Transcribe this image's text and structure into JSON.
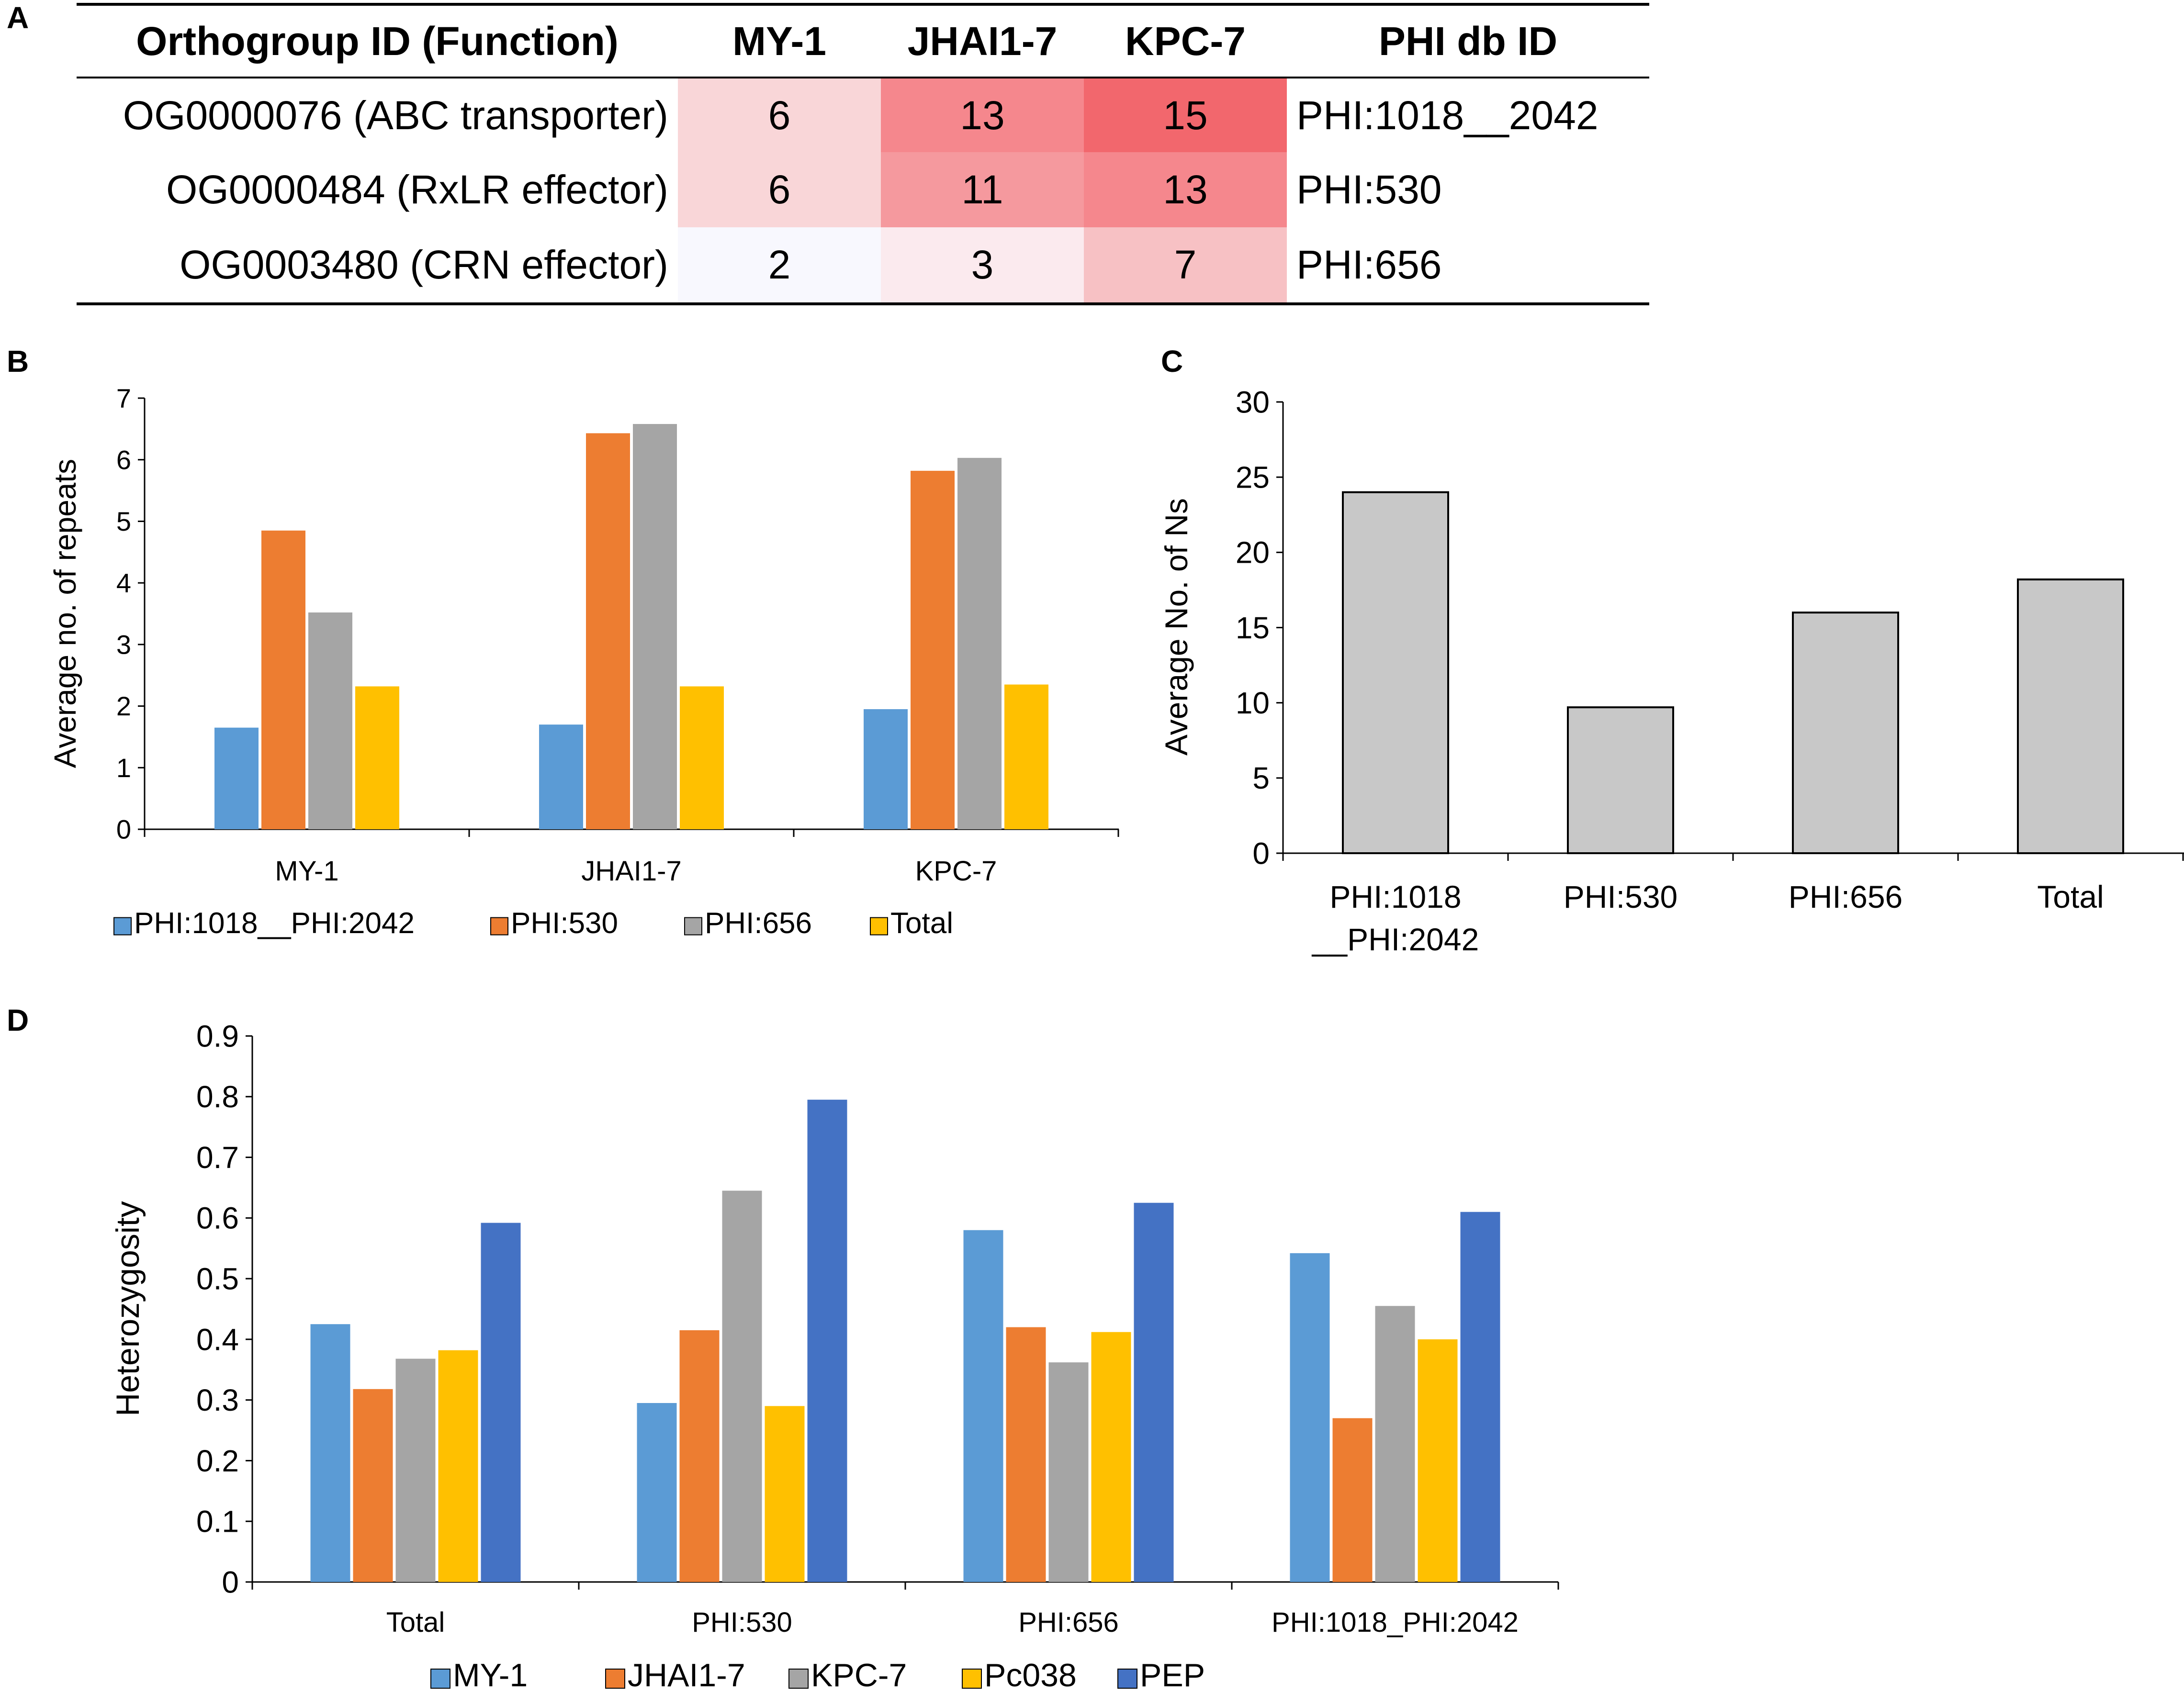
{
  "panels": {
    "a": "A",
    "b": "B",
    "c": "C",
    "d": "D"
  },
  "table": {
    "headers": [
      "Orthogroup ID (Function)",
      "MY-1",
      "JHAI1-7",
      "KPC-7",
      "PHI db ID"
    ],
    "rows": [
      {
        "orthogroup": "OG0000076 (ABC transporter)",
        "counts": [
          "6",
          "13",
          "15"
        ],
        "phi": "PHI:1018__2042"
      },
      {
        "orthogroup": "OG0000484 (RxLR effector)",
        "counts": [
          "6",
          "11",
          "13"
        ],
        "phi": "PHI:530"
      },
      {
        "orthogroup": "OG0003480 (CRN effector)",
        "counts": [
          "2",
          "3",
          "7"
        ],
        "phi": "PHI:656"
      }
    ]
  },
  "chart_data": [
    {
      "id": "B",
      "type": "bar",
      "categories": [
        "MY-1",
        "JHAI1-7",
        "KPC-7"
      ],
      "series": [
        {
          "name": "PHI:1018__PHI:2042",
          "color": "#5b9bd5",
          "values": [
            1.65,
            1.7,
            1.95
          ]
        },
        {
          "name": "PHI:530",
          "color": "#ed7d31",
          "values": [
            4.85,
            6.43,
            5.82
          ]
        },
        {
          "name": "PHI:656",
          "color": "#a5a5a5",
          "values": [
            3.52,
            6.58,
            6.03
          ]
        },
        {
          "name": "Total",
          "color": "#ffc000",
          "values": [
            2.32,
            2.32,
            2.35
          ]
        }
      ],
      "title": "",
      "xlabel": "",
      "ylabel": "Average no. of repeats",
      "ylim": [
        0,
        7
      ],
      "yticks": [
        "0",
        "1",
        "2",
        "3",
        "4",
        "5",
        "6",
        "7"
      ],
      "legend": "bottom"
    },
    {
      "id": "C",
      "type": "bar",
      "categories": [
        "PHI:1018\n__PHI:2042",
        "PHI:530",
        "PHI:656",
        "Total"
      ],
      "series": [
        {
          "name": "Average No. of Ns",
          "color": "#c8c8c8",
          "values": [
            24,
            9.7,
            16,
            18.2
          ]
        }
      ],
      "title": "",
      "xlabel": "",
      "ylabel": "Average No. of Ns",
      "ylim": [
        0,
        30
      ],
      "yticks": [
        "0",
        "5",
        "10",
        "15",
        "20",
        "25",
        "30"
      ],
      "legend": "none"
    },
    {
      "id": "D",
      "type": "bar",
      "categories": [
        "Total",
        "PHI:530",
        "PHI:656",
        "PHI:1018_PHI:2042"
      ],
      "series": [
        {
          "name": "MY-1",
          "color": "#5b9bd5",
          "values": [
            0.425,
            0.295,
            0.58,
            0.542
          ]
        },
        {
          "name": "JHAI1-7",
          "color": "#ed7d31",
          "values": [
            0.318,
            0.415,
            0.42,
            0.27
          ]
        },
        {
          "name": "KPC-7",
          "color": "#a5a5a5",
          "values": [
            0.368,
            0.645,
            0.362,
            0.455
          ]
        },
        {
          "name": "Pc038",
          "color": "#ffc000",
          "values": [
            0.382,
            0.29,
            0.412,
            0.4
          ]
        },
        {
          "name": "PEP",
          "color": "#4472c4",
          "values": [
            0.592,
            0.795,
            0.625,
            0.61
          ]
        }
      ],
      "title": "",
      "xlabel": "",
      "ylabel": "Heterozygosity",
      "ylim": [
        0,
        0.9
      ],
      "yticks": [
        "0",
        "0.1",
        "0.2",
        "0.3",
        "0.4",
        "0.5",
        "0.6",
        "0.7",
        "0.8",
        "0.9"
      ],
      "legend": "bottom"
    }
  ]
}
